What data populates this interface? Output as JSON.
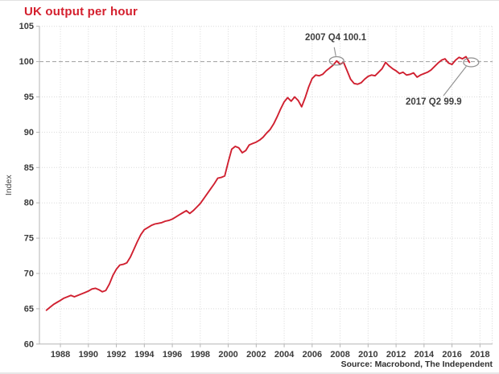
{
  "page": {
    "title": "UK output per hour",
    "source_credit": "Source: Macrobond, The Independent"
  },
  "chart_data": {
    "type": "line",
    "title": "UK output per hour",
    "ylabel": "Index",
    "source": "Source: Macrobond, The Independent",
    "frequency": "quarterly",
    "x_start_year": 1987,
    "x_start_quarter": 1,
    "x_end_label": "2017 Q2",
    "xlim": [
      1986.5,
      2018.9
    ],
    "ylim": [
      60,
      105
    ],
    "x_ticks": [
      1988,
      1990,
      1992,
      1994,
      1996,
      1998,
      2000,
      2002,
      2004,
      2006,
      2008,
      2010,
      2012,
      2014,
      2016,
      2018
    ],
    "y_ticks": [
      60,
      65,
      70,
      75,
      80,
      85,
      90,
      95,
      100,
      105
    ],
    "reference_line": 100,
    "grid": true,
    "line_color": "#d02030",
    "values": [
      64.8,
      65.2,
      65.6,
      65.9,
      66.2,
      66.5,
      66.7,
      66.9,
      66.7,
      66.9,
      67.1,
      67.3,
      67.5,
      67.8,
      67.9,
      67.7,
      67.4,
      67.6,
      68.5,
      69.7,
      70.6,
      71.2,
      71.3,
      71.5,
      72.3,
      73.4,
      74.5,
      75.5,
      76.2,
      76.5,
      76.8,
      77.0,
      77.1,
      77.2,
      77.4,
      77.5,
      77.7,
      78.0,
      78.3,
      78.6,
      78.9,
      78.5,
      78.9,
      79.4,
      79.9,
      80.6,
      81.3,
      82.0,
      82.7,
      83.5,
      83.6,
      83.8,
      85.8,
      87.6,
      88.0,
      87.8,
      87.1,
      87.4,
      88.2,
      88.4,
      88.6,
      88.9,
      89.3,
      89.9,
      90.4,
      91.2,
      92.2,
      93.3,
      94.3,
      94.9,
      94.4,
      95.0,
      94.5,
      93.6,
      94.9,
      96.4,
      97.6,
      98.1,
      98.0,
      98.2,
      98.7,
      99.1,
      99.5,
      100.1,
      99.6,
      99.9,
      98.7,
      97.5,
      96.9,
      96.8,
      97.0,
      97.5,
      97.9,
      98.1,
      98.0,
      98.5,
      99.0,
      99.9,
      99.4,
      99.0,
      98.7,
      98.3,
      98.5,
      98.1,
      98.2,
      98.4,
      97.8,
      98.1,
      98.3,
      98.5,
      98.8,
      99.3,
      99.8,
      100.2,
      100.4,
      99.8,
      99.6,
      100.2,
      100.6,
      100.4,
      100.7,
      99.9
    ],
    "annotations": [
      {
        "text": "2007 Q4 100.1",
        "year": 2007,
        "quarter": 4,
        "value": 100.1
      },
      {
        "text": "2017 Q2 99.9",
        "year": 2017,
        "quarter": 2,
        "value": 99.9
      }
    ]
  }
}
